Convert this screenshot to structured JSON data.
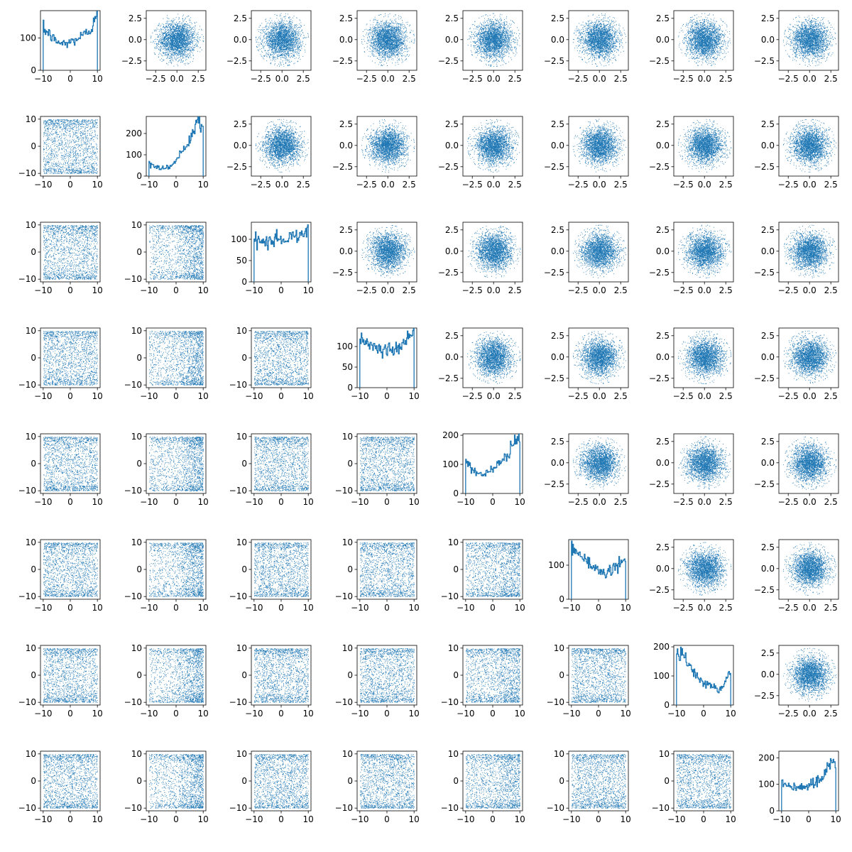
{
  "figure": {
    "color": "#1f77b4",
    "grid": {
      "rows": 8,
      "cols": 8
    },
    "grid_lines": false,
    "legend": "none"
  },
  "chart_data": {
    "type": "pair-plot",
    "description_of_layout": "8x8 matrix: diagonal panels are step histograms of each variable on [-10,10]; lower-triangle panels are scatter plots of the original variables (both axes -10..10); upper-triangle panels are scatter plots of standardized/transformed variables (both axes roughly -3.5..3.5).",
    "title": "",
    "xlabel": "",
    "ylabel": "",
    "lower_triangle": {
      "type": "scatter",
      "xlim": [
        -11,
        11
      ],
      "ylim": [
        -11,
        11
      ],
      "xticks": [
        -10,
        0,
        10
      ],
      "yticks": [
        -10,
        0,
        10
      ],
      "points_per_panel": 1800,
      "marker": "pixel"
    },
    "upper_triangle": {
      "type": "scatter",
      "xlim": [
        -3.6,
        3.4
      ],
      "ylim": [
        -3.6,
        3.4
      ],
      "xticks": [
        -2.5,
        0.0,
        2.5
      ],
      "yticks": [
        -2.5,
        0.0,
        2.5
      ],
      "points_per_panel": 2600,
      "marker": "pixel"
    },
    "diagonal": [
      {
        "type": "histogram",
        "xlim": [
          -11,
          11
        ],
        "ylim": [
          0,
          185
        ],
        "xticks": [
          -10,
          0,
          10
        ],
        "yticks": [
          0,
          100
        ],
        "bins_x": [
          -10,
          -8,
          -6,
          -4,
          -2,
          0,
          2,
          4,
          6,
          8,
          9,
          10
        ],
        "counts": [
          128,
          115,
          95,
          85,
          82,
          88,
          95,
          105,
          115,
          130,
          175,
          175
        ]
      },
      {
        "type": "histogram",
        "xlim": [
          -11,
          11
        ],
        "ylim": [
          0,
          280
        ],
        "xticks": [
          -10,
          0,
          10
        ],
        "yticks": [
          0,
          100,
          200
        ],
        "bins_x": [
          -10,
          -8,
          -6,
          -4,
          -2,
          0,
          2,
          4,
          6,
          8,
          9,
          10
        ],
        "counts": [
          65,
          45,
          38,
          40,
          50,
          70,
          110,
          150,
          200,
          265,
          240,
          240
        ]
      },
      {
        "type": "histogram",
        "xlim": [
          -11,
          11
        ],
        "ylim": [
          0,
          140
        ],
        "xticks": [
          -10,
          0,
          10
        ],
        "yticks": [
          0,
          50,
          100
        ],
        "bins_x": [
          -10,
          -8,
          -6,
          -4,
          -2,
          0,
          2,
          4,
          6,
          8,
          9,
          10
        ],
        "counts": [
          95,
          100,
          88,
          92,
          105,
          95,
          100,
          112,
          105,
          120,
          125,
          125
        ]
      },
      {
        "type": "histogram",
        "xlim": [
          -11,
          11
        ],
        "ylim": [
          0,
          145
        ],
        "xticks": [
          -10,
          0,
          10
        ],
        "yticks": [
          0,
          50,
          100
        ],
        "bins_x": [
          -10,
          -8,
          -6,
          -4,
          -2,
          0,
          2,
          4,
          6,
          8,
          9,
          10
        ],
        "counts": [
          130,
          115,
          100,
          95,
          92,
          95,
          92,
          98,
          110,
          125,
          138,
          138
        ]
      },
      {
        "type": "histogram",
        "xlim": [
          -11,
          11
        ],
        "ylim": [
          0,
          205
        ],
        "xticks": [
          -10,
          0,
          10
        ],
        "yticks": [
          0,
          100,
          200
        ],
        "bins_x": [
          -10,
          -8,
          -6,
          -4,
          -2,
          0,
          2,
          4,
          6,
          8,
          9,
          10
        ],
        "counts": [
          108,
          90,
          72,
          65,
          70,
          85,
          100,
          120,
          140,
          175,
          185,
          185
        ]
      },
      {
        "type": "histogram",
        "xlim": [
          -11,
          11
        ],
        "ylim": [
          0,
          175
        ],
        "xticks": [
          -10,
          0,
          10
        ],
        "yticks": [
          0,
          100
        ],
        "bins_x": [
          -10,
          -8,
          -6,
          -4,
          -2,
          0,
          2,
          4,
          6,
          8,
          9,
          10
        ],
        "counts": [
          160,
          135,
          120,
          105,
          95,
          85,
          78,
          82,
          90,
          105,
          115,
          115
        ]
      },
      {
        "type": "histogram",
        "xlim": [
          -11,
          11
        ],
        "ylim": [
          0,
          205
        ],
        "xticks": [
          -10,
          0,
          10
        ],
        "yticks": [
          0,
          100,
          200
        ],
        "bins_x": [
          -10,
          -8,
          -6,
          -4,
          -2,
          0,
          2,
          4,
          6,
          8,
          9,
          10
        ],
        "counts": [
          180,
          175,
          150,
          120,
          95,
          80,
          70,
          60,
          52,
          75,
          105,
          105
        ]
      },
      {
        "type": "histogram",
        "xlim": [
          -11,
          11
        ],
        "ylim": [
          0,
          225
        ],
        "xticks": [
          -10,
          0,
          10
        ],
        "yticks": [
          0,
          100,
          200
        ],
        "bins_x": [
          -10,
          -8,
          -6,
          -4,
          -2,
          0,
          2,
          4,
          6,
          8,
          9,
          10
        ],
        "counts": [
          105,
          98,
          90,
          85,
          88,
          95,
          100,
          115,
          140,
          205,
          180,
          180
        ]
      }
    ]
  }
}
